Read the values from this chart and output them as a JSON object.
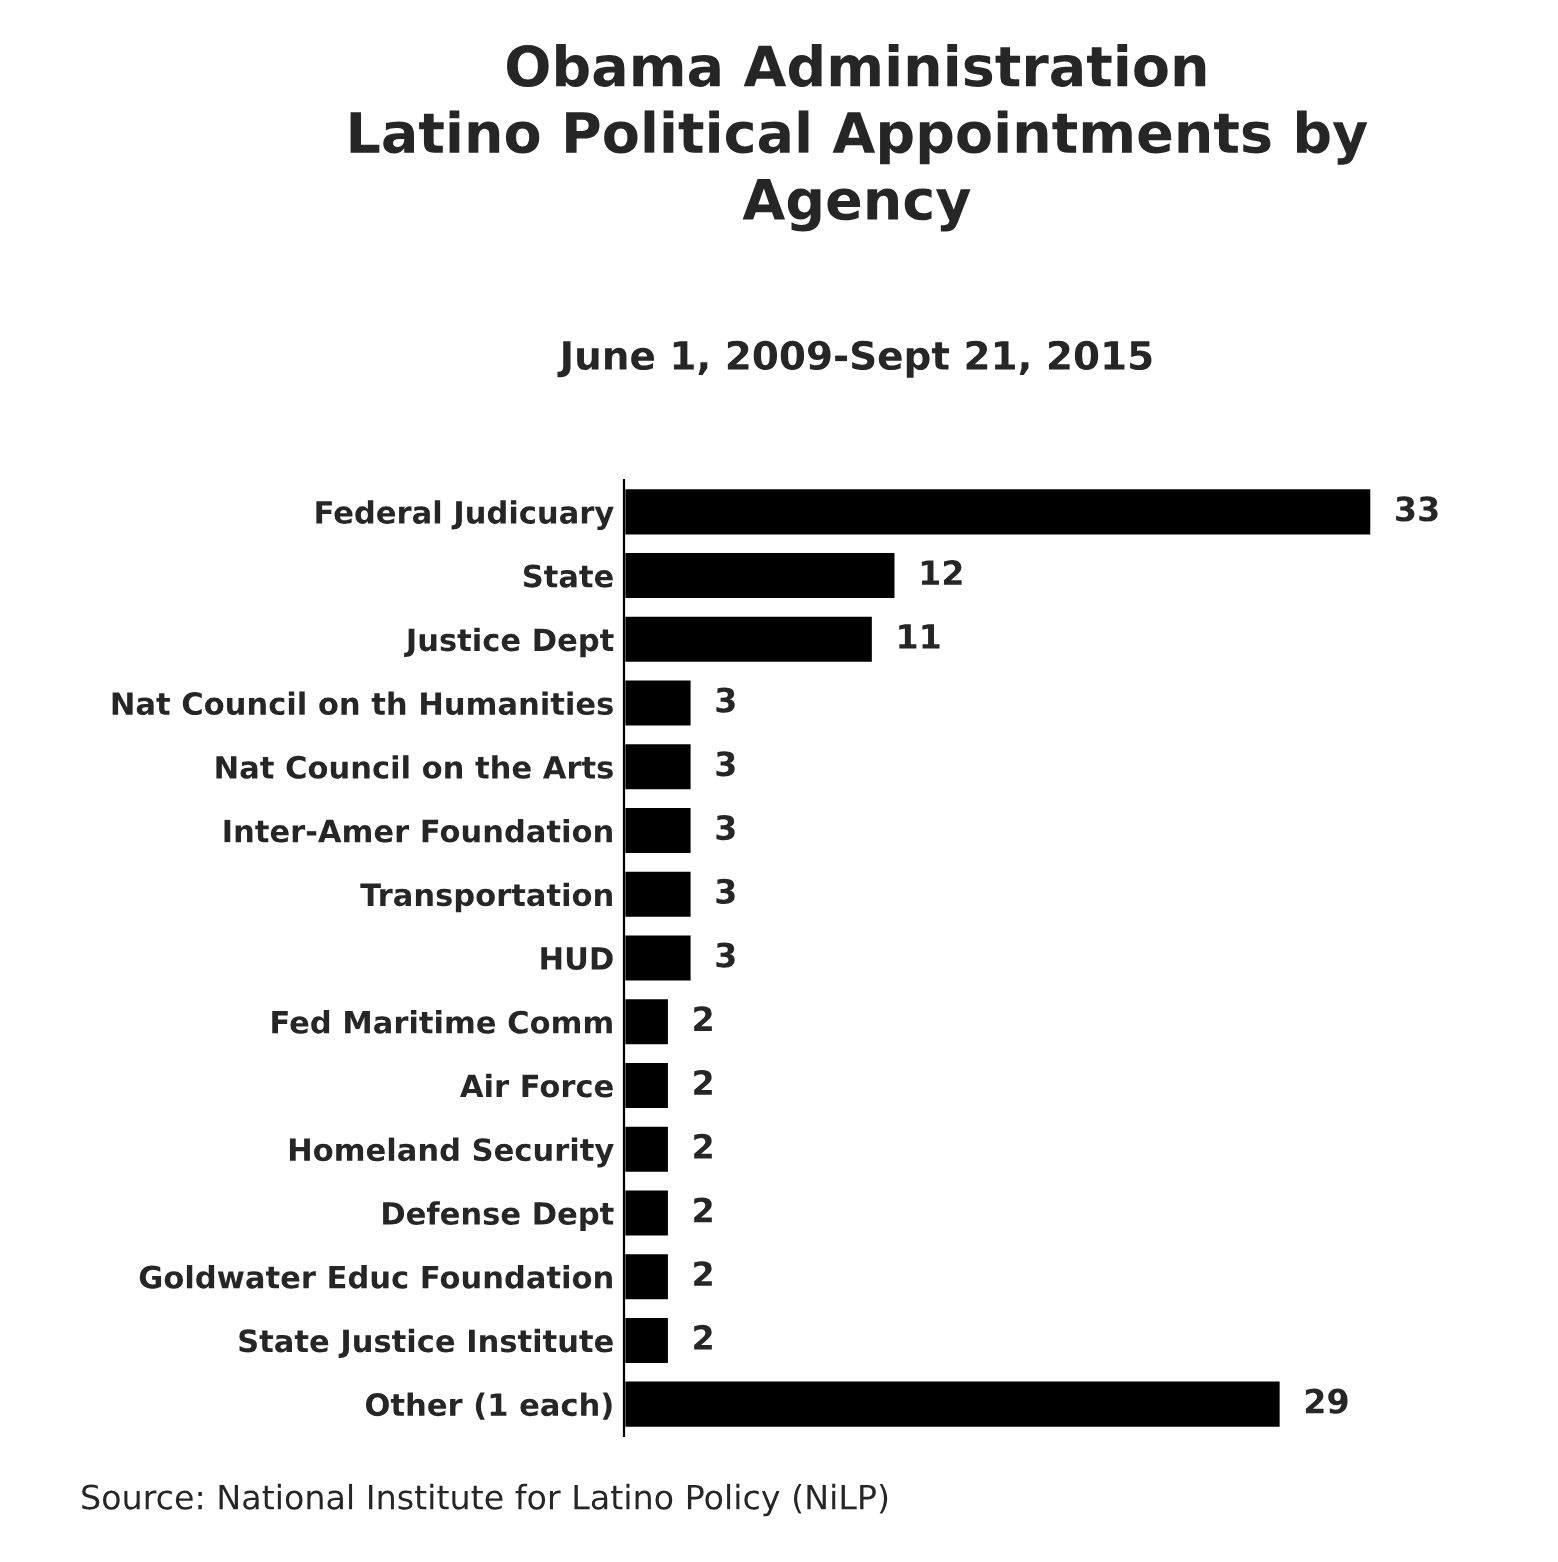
{
  "chart_data": {
    "type": "bar",
    "orientation": "horizontal",
    "title": "Obama Administration\nLatino Political Appointments by\nAgency",
    "subtitle": "June 1, 2009-Sept 21, 2015",
    "categories": [
      "Federal Judicuary",
      "State",
      "Justice Dept",
      "Nat Council on th Humanities",
      "Nat Council on the Arts",
      "Inter-Amer Foundation",
      "Transportation",
      "HUD",
      "Fed Maritime Comm",
      "Air Force",
      "Homeland Security",
      "Defense Dept",
      "Goldwater Educ Foundation",
      "State Justice Institute",
      "Other (1 each)"
    ],
    "values": [
      33,
      12,
      11,
      3,
      3,
      3,
      3,
      3,
      2,
      2,
      2,
      2,
      2,
      2,
      29
    ],
    "color": "#000000",
    "data_labels": true,
    "grid": false,
    "legend": false,
    "tick_labels": "y",
    "annotations": [
      "Source: National Institute for Latino Policy (NiLP)"
    ]
  }
}
